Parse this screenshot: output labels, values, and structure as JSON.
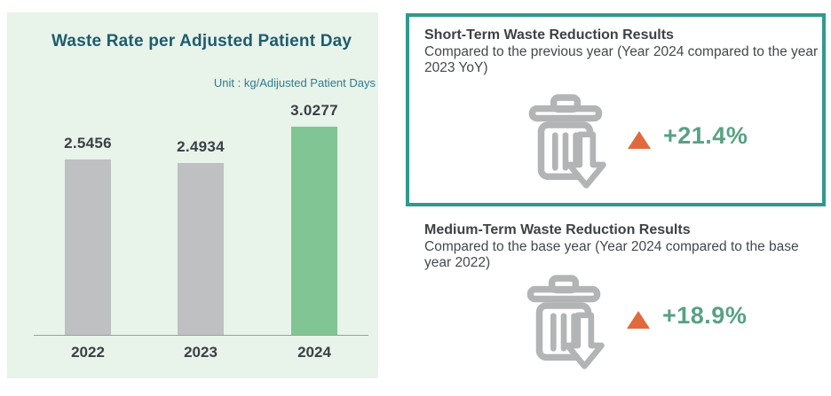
{
  "chart_data": {
    "type": "bar",
    "title": "Waste Rate per Adjusted Patient Day",
    "unit_label": "Unit : kg/Adijusted Patient Days",
    "categories": [
      "2022",
      "2023",
      "2024"
    ],
    "values": [
      2.5456,
      2.4934,
      3.0277
    ],
    "value_labels": [
      "2.5456",
      "2.4934",
      "3.0277"
    ],
    "bar_colors": [
      "#bec0c2",
      "#bec0c2",
      "#81c595"
    ],
    "ylim": [
      0,
      3.3
    ],
    "grid": false,
    "legend": "none",
    "highlight_category": "2024",
    "panel_background": "#e8f3ea"
  },
  "result_boxes": [
    {
      "title": "Short-Term Waste Reduction Results",
      "subtitle": "Compared to the previous year (Year 2024 compared to the year 2023 YoY)",
      "icon": "trash-can-with-down-arrow-icon",
      "delta_direction": "up",
      "delta_value": "+21.4%",
      "bordered": true
    },
    {
      "title": "Medium-Term Waste Reduction Results",
      "subtitle": "Compared to the base year (Year 2024 compared to the base year 2022)",
      "icon": "trash-can-with-down-arrow-icon",
      "delta_direction": "up",
      "delta_value": "+18.9%",
      "bordered": false
    }
  ],
  "colors": {
    "panel_background": "#e8f3ea",
    "chart_title": "#1d5c6e",
    "unit_label": "#2e7d8c",
    "bar_gray": "#bec0c2",
    "bar_green": "#81c595",
    "box_border_teal": "#2f9a8c",
    "delta_triangle_orange": "#e06a3b",
    "delta_text_green": "#58a184",
    "icon_gray": "#b2b4b6"
  }
}
